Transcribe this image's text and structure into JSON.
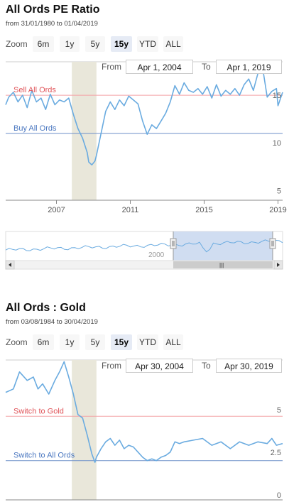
{
  "charts": [
    {
      "title": "All Ords PE Ratio",
      "subtitle": "from 31/01/1980 to 01/04/2019",
      "zoom": {
        "label": "Zoom",
        "buttons": [
          "6m",
          "1y",
          "5y",
          "15y",
          "YTD",
          "ALL"
        ],
        "active": "15y"
      },
      "range": {
        "from_label": "From",
        "from_value": "Apr 1, 2004",
        "to_label": "To",
        "to_value": "Apr 1, 2019"
      }
    },
    {
      "title": "All Ords : Gold",
      "subtitle": "from 03/08/1984 to 30/04/2019",
      "zoom": {
        "label": "Zoom",
        "buttons": [
          "6m",
          "1y",
          "5y",
          "15y",
          "YTD",
          "ALL"
        ],
        "active": "15y"
      },
      "range": {
        "from_label": "From",
        "from_value": "Apr 30, 2004",
        "to_label": "To",
        "to_value": "Apr 30, 2019"
      }
    }
  ],
  "navigator": {
    "label": "2000",
    "scroll_grip": "|||"
  },
  "colors": {
    "series": "#6aabe0",
    "sell_line": "#f4a3a6",
    "sell_text": "#e0555a",
    "buy_line": "#6b8fc9",
    "buy_text": "#4a77c0",
    "recession": "#e9e7da",
    "navigator_select": "#c8d7ee"
  },
  "chart_data": [
    {
      "type": "line",
      "title": "All Ords PE Ratio",
      "x_ticks": [
        "2007",
        "2011",
        "2015",
        "2019"
      ],
      "y_ticks": [
        "5",
        "10",
        "15"
      ],
      "ylim": [
        4.5,
        19
      ],
      "grid": "horizontal only, none",
      "shaded_period": [
        "2007-11",
        "2009-03"
      ],
      "reference_lines": [
        {
          "label": "Sell All Ords",
          "value": 15.5
        },
        {
          "label": "Buy All Ords",
          "value": 11.5
        }
      ],
      "series": [
        {
          "x": [
            "2004-04",
            "2004-06",
            "2004-09",
            "2004-12",
            "2005-03",
            "2005-06",
            "2005-09",
            "2005-12",
            "2006-03",
            "2006-06",
            "2006-09",
            "2006-12",
            "2007-03",
            "2007-06",
            "2007-09",
            "2007-12",
            "2008-03",
            "2008-06",
            "2008-09",
            "2008-10",
            "2008-12",
            "2009-02",
            "2009-03",
            "2009-06",
            "2009-09",
            "2009-12",
            "2010-03",
            "2010-06",
            "2010-09",
            "2010-12",
            "2011-03",
            "2011-06",
            "2011-09",
            "2011-12",
            "2012-03",
            "2012-06",
            "2012-09",
            "2012-12",
            "2013-03",
            "2013-06",
            "2013-09",
            "2013-12",
            "2014-03",
            "2014-06",
            "2014-09",
            "2014-12",
            "2015-03",
            "2015-06",
            "2015-09",
            "2015-12",
            "2016-03",
            "2016-06",
            "2016-09",
            "2016-12",
            "2017-03",
            "2017-06",
            "2017-09",
            "2017-12",
            "2018-03",
            "2018-06",
            "2018-09",
            "2018-12",
            "2019-01",
            "2019-04"
          ],
          "y": [
            14.5,
            15.3,
            15.8,
            14.8,
            15.5,
            14.2,
            16.0,
            14.8,
            15.2,
            14.0,
            15.6,
            14.5,
            15.0,
            14.8,
            15.2,
            13.5,
            12.0,
            11.0,
            9.5,
            8.5,
            8.2,
            8.6,
            9.2,
            11.5,
            13.8,
            14.8,
            14.0,
            15.0,
            14.4,
            15.4,
            15.0,
            14.6,
            12.8,
            11.4,
            12.4,
            12.0,
            12.8,
            13.6,
            14.8,
            16.5,
            15.6,
            16.8,
            16.0,
            15.8,
            16.2,
            15.6,
            16.4,
            15.2,
            16.6,
            15.4,
            16.0,
            15.6,
            16.2,
            15.5,
            16.6,
            17.2,
            16.0,
            17.8,
            18.4,
            15.3,
            15.9,
            16.2,
            14.4,
            15.8
          ]
        }
      ]
    },
    {
      "type": "line",
      "title": "All Ords : Gold",
      "x_ticks": [],
      "y_ticks": [
        "0",
        "2.5",
        "5",
        "7.5"
      ],
      "ylim": [
        0,
        8.2
      ],
      "grid": "horizontal only, none",
      "shaded_period": [
        "2007-11",
        "2009-03"
      ],
      "reference_lines": [
        {
          "label": "Switch to Gold",
          "value": 4.9
        },
        {
          "label": "Switch to All Ords",
          "value": 2.3
        }
      ],
      "series": [
        {
          "x": [
            "2004-04",
            "2004-09",
            "2005-01",
            "2005-06",
            "2005-10",
            "2006-01",
            "2006-04",
            "2006-08",
            "2006-12",
            "2007-03",
            "2007-06",
            "2007-09",
            "2007-12",
            "2008-03",
            "2008-06",
            "2008-09",
            "2008-12",
            "2009-02",
            "2009-03",
            "2009-06",
            "2009-09",
            "2009-12",
            "2010-03",
            "2010-06",
            "2010-09",
            "2010-12",
            "2011-03",
            "2011-06",
            "2011-09",
            "2011-12",
            "2012-03",
            "2012-06",
            "2012-09",
            "2012-12",
            "2013-03",
            "2013-06",
            "2013-09",
            "2013-12",
            "2014-06",
            "2014-12",
            "2015-06",
            "2015-12",
            "2016-06",
            "2016-12",
            "2017-06",
            "2017-12",
            "2018-06",
            "2018-09",
            "2018-12",
            "2019-04"
          ],
          "y": [
            6.3,
            6.5,
            7.5,
            7.0,
            7.2,
            6.5,
            6.8,
            6.2,
            7.0,
            7.5,
            8.1,
            7.2,
            6.2,
            5.0,
            4.8,
            3.8,
            2.7,
            2.2,
            2.5,
            3.0,
            3.4,
            3.6,
            3.2,
            3.5,
            3.0,
            3.2,
            3.1,
            2.8,
            2.5,
            2.3,
            2.4,
            2.3,
            2.5,
            2.6,
            2.8,
            3.4,
            3.3,
            3.4,
            3.5,
            3.6,
            3.2,
            3.4,
            3.0,
            3.4,
            3.2,
            3.4,
            3.3,
            3.6,
            3.2,
            3.3
          ]
        }
      ]
    }
  ]
}
